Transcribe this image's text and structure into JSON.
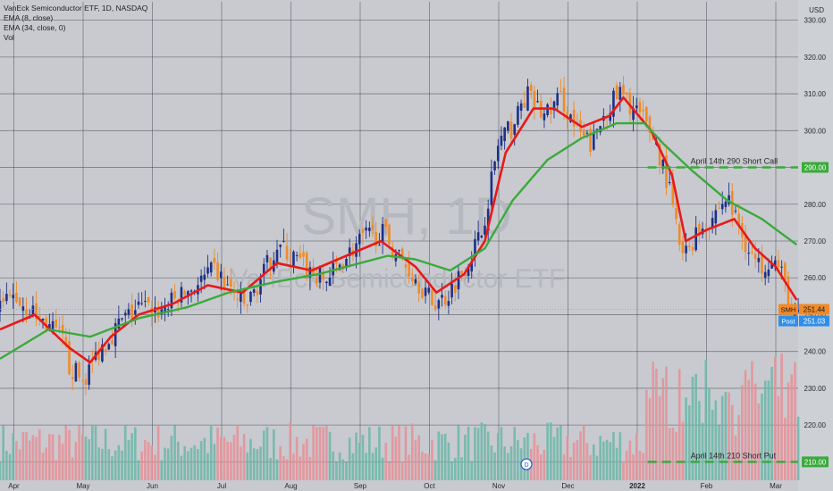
{
  "header": {
    "title": "VanEck Semiconductor ETF, 1D, NASDAQ",
    "indicators": [
      "EMA (8, close)",
      "EMA (34, close, 0)",
      "Vol"
    ]
  },
  "watermark": {
    "symbol": "SMH, 1D",
    "name": "VanEck Semiconductor ETF"
  },
  "currency_label": "USD",
  "annotations": {
    "short_call": {
      "text": "April 14th 290 Short Call",
      "price": 290.0,
      "price_label": "290.00"
    },
    "short_put": {
      "text": "April 14th 210 Short Put",
      "price": 210.0,
      "price_label": "210.00"
    }
  },
  "price_tags": {
    "last": {
      "symbol": "SMH",
      "value": "251.44",
      "price": 251.44
    },
    "post": {
      "label": "Post",
      "value": "251.03",
      "price": 251.03
    }
  },
  "events": [
    {
      "label": "D",
      "month_index": 7.6
    }
  ],
  "colors": {
    "background": "#c8cacf",
    "grid": "#3a3d45",
    "up": "#1e2f86",
    "down": "#f08a2a",
    "ema_fast": "#e8191a",
    "ema_slow": "#3aaa3c",
    "vol_up": "#6bb7a8",
    "vol_down": "#e68f96",
    "level_line": "#3aaa3c"
  },
  "chart_data": {
    "type": "line",
    "symbol": "SMH",
    "x_labels": [
      "Apr",
      "May",
      "Jun",
      "Jul",
      "Aug",
      "Sep",
      "Oct",
      "Nov",
      "Dec",
      "2022",
      "Feb",
      "Mar"
    ],
    "y_ticks": [
      210,
      220,
      230,
      240,
      250,
      260,
      270,
      280,
      290,
      300,
      310,
      320,
      330
    ],
    "ylim": [
      205,
      335
    ],
    "grid": true,
    "price_path": [
      [
        0,
        252
      ],
      [
        0.2,
        255
      ],
      [
        0.45,
        251
      ],
      [
        0.7,
        247
      ],
      [
        0.9,
        243
      ],
      [
        1.0,
        236
      ],
      [
        1.2,
        232
      ],
      [
        1.45,
        241
      ],
      [
        1.75,
        248
      ],
      [
        2.0,
        252
      ],
      [
        2.3,
        251
      ],
      [
        2.6,
        255
      ],
      [
        2.9,
        259
      ],
      [
        3.1,
        262
      ],
      [
        3.35,
        256
      ],
      [
        3.55,
        252
      ],
      [
        3.8,
        261
      ],
      [
        4.0,
        269
      ],
      [
        4.2,
        266
      ],
      [
        4.45,
        262
      ],
      [
        4.7,
        259
      ],
      [
        5.0,
        266
      ],
      [
        5.25,
        271
      ],
      [
        5.55,
        272
      ],
      [
        5.75,
        266
      ],
      [
        6.0,
        260
      ],
      [
        6.25,
        253
      ],
      [
        6.45,
        255
      ],
      [
        6.7,
        263
      ],
      [
        6.95,
        272
      ],
      [
        7.2,
        297
      ],
      [
        7.4,
        301
      ],
      [
        7.6,
        310
      ],
      [
        7.85,
        304
      ],
      [
        8.1,
        309
      ],
      [
        8.35,
        299
      ],
      [
        8.55,
        296
      ],
      [
        8.75,
        306
      ],
      [
        8.95,
        310
      ],
      [
        9.2,
        305
      ],
      [
        9.45,
        298
      ],
      [
        9.65,
        285
      ],
      [
        9.85,
        265
      ],
      [
        10.05,
        272
      ],
      [
        10.25,
        276
      ],
      [
        10.5,
        282
      ],
      [
        10.75,
        270
      ],
      [
        10.95,
        263
      ],
      [
        11.15,
        266
      ],
      [
        11.35,
        258
      ],
      [
        11.45,
        247
      ],
      [
        11.55,
        251.4
      ]
    ],
    "series": [
      {
        "name": "EMA (8, close)",
        "color": "#e8191a",
        "values": [
          [
            0,
            246
          ],
          [
            0.5,
            250
          ],
          [
            1.0,
            241
          ],
          [
            1.3,
            237
          ],
          [
            1.6,
            244
          ],
          [
            2.0,
            250
          ],
          [
            2.5,
            253
          ],
          [
            3.0,
            258
          ],
          [
            3.5,
            256
          ],
          [
            4.0,
            264
          ],
          [
            4.5,
            262
          ],
          [
            5.0,
            266
          ],
          [
            5.5,
            270
          ],
          [
            6.0,
            263
          ],
          [
            6.3,
            256
          ],
          [
            6.7,
            261
          ],
          [
            7.0,
            270
          ],
          [
            7.3,
            294
          ],
          [
            7.7,
            306
          ],
          [
            8.0,
            306
          ],
          [
            8.4,
            301
          ],
          [
            8.8,
            304
          ],
          [
            9.0,
            309
          ],
          [
            9.4,
            300
          ],
          [
            9.7,
            288
          ],
          [
            9.9,
            270
          ],
          [
            10.2,
            273
          ],
          [
            10.6,
            276
          ],
          [
            10.9,
            268
          ],
          [
            11.2,
            263
          ],
          [
            11.5,
            254
          ]
        ]
      },
      {
        "name": "EMA (34, close, 0)",
        "color": "#3aaa3c",
        "values": [
          [
            0,
            238
          ],
          [
            0.7,
            246
          ],
          [
            1.3,
            244
          ],
          [
            2.0,
            249
          ],
          [
            2.7,
            252
          ],
          [
            3.3,
            256
          ],
          [
            4.0,
            259
          ],
          [
            4.6,
            261
          ],
          [
            5.2,
            264
          ],
          [
            5.6,
            266
          ],
          [
            6.0,
            265
          ],
          [
            6.5,
            262
          ],
          [
            7.0,
            268
          ],
          [
            7.4,
            281
          ],
          [
            7.9,
            292
          ],
          [
            8.4,
            298
          ],
          [
            8.9,
            302
          ],
          [
            9.3,
            302
          ],
          [
            9.6,
            296
          ],
          [
            10.0,
            289
          ],
          [
            10.5,
            281
          ],
          [
            11.0,
            276
          ],
          [
            11.5,
            269
          ]
        ]
      }
    ]
  }
}
